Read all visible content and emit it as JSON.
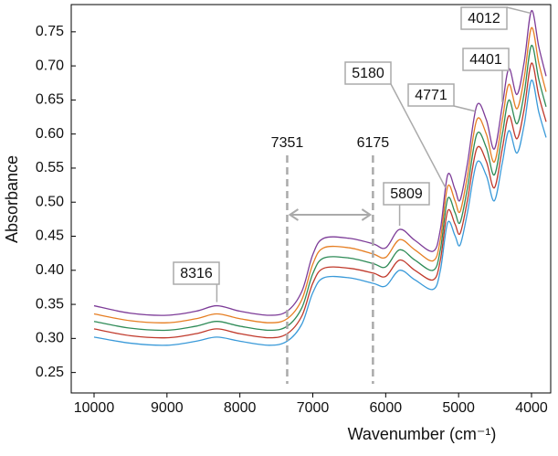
{
  "chart_data": {
    "type": "line",
    "x_label": "Wavenumber (cm⁻¹)",
    "y_label": "Absorbance",
    "x": [
      10000,
      9500,
      9000,
      8600,
      8316,
      8000,
      7600,
      7351,
      7150,
      7000,
      6850,
      6500,
      6175,
      6000,
      5809,
      5600,
      5350,
      5250,
      5150,
      5050,
      4980,
      4880,
      4750,
      4620,
      4510,
      4400,
      4310,
      4200,
      4100,
      4000,
      3900,
      3800
    ],
    "series": [
      {
        "color": "#3a9ad9",
        "values": [
          0.302,
          0.293,
          0.29,
          0.296,
          0.302,
          0.296,
          0.29,
          0.296,
          0.321,
          0.367,
          0.389,
          0.389,
          0.381,
          0.377,
          0.4,
          0.386,
          0.372,
          0.4,
          0.47,
          0.451,
          0.437,
          0.484,
          0.558,
          0.539,
          0.502,
          0.558,
          0.605,
          0.572,
          0.614,
          0.679,
          0.632,
          0.595
        ]
      },
      {
        "color": "#c0392b",
        "values": [
          0.314,
          0.304,
          0.301,
          0.307,
          0.314,
          0.307,
          0.301,
          0.307,
          0.333,
          0.381,
          0.403,
          0.403,
          0.396,
          0.391,
          0.415,
          0.4,
          0.386,
          0.415,
          0.487,
          0.468,
          0.454,
          0.502,
          0.579,
          0.56,
          0.521,
          0.579,
          0.627,
          0.593,
          0.637,
          0.704,
          0.656,
          0.618
        ]
      },
      {
        "color": "#2e8b57",
        "values": [
          0.325,
          0.315,
          0.312,
          0.318,
          0.325,
          0.318,
          0.312,
          0.318,
          0.345,
          0.395,
          0.418,
          0.418,
          0.41,
          0.405,
          0.43,
          0.415,
          0.4,
          0.43,
          0.505,
          0.485,
          0.47,
          0.52,
          0.6,
          0.58,
          0.54,
          0.6,
          0.65,
          0.615,
          0.66,
          0.73,
          0.68,
          0.64
        ]
      },
      {
        "color": "#e67e22",
        "values": [
          0.336,
          0.326,
          0.323,
          0.329,
          0.336,
          0.329,
          0.323,
          0.329,
          0.357,
          0.409,
          0.433,
          0.433,
          0.424,
          0.419,
          0.445,
          0.43,
          0.414,
          0.445,
          0.523,
          0.502,
          0.486,
          0.538,
          0.621,
          0.6,
          0.559,
          0.621,
          0.673,
          0.637,
          0.683,
          0.756,
          0.704,
          0.662
        ]
      },
      {
        "color": "#7d3c98",
        "values": [
          0.348,
          0.337,
          0.334,
          0.34,
          0.348,
          0.34,
          0.334,
          0.34,
          0.369,
          0.423,
          0.447,
          0.447,
          0.439,
          0.433,
          0.46,
          0.444,
          0.428,
          0.46,
          0.54,
          0.519,
          0.503,
          0.556,
          0.642,
          0.621,
          0.578,
          0.642,
          0.696,
          0.658,
          0.706,
          0.781,
          0.728,
          0.685
        ]
      }
    ],
    "xlim": [
      10313,
      3737
    ],
    "ylim": [
      0.22,
      0.79
    ],
    "xticks": [
      10000,
      9000,
      8000,
      7000,
      6000,
      5000,
      4000
    ],
    "yticks": [
      0.25,
      {
        "value": 0.3,
        "label": "0.30"
      },
      0.35,
      {
        "value": 0.4,
        "label": "0.40"
      },
      0.45,
      {
        "value": 0.5,
        "label": "0.50"
      },
      0.55,
      {
        "value": 0.6,
        "label": "0.60"
      },
      0.65,
      {
        "value": 0.7,
        "label": "0.70"
      },
      0.75
    ],
    "peak_labels": [
      8316,
      5809,
      5180,
      4771,
      4401,
      4012
    ],
    "reference_lines": [
      7351,
      6175
    ],
    "grid": false
  }
}
